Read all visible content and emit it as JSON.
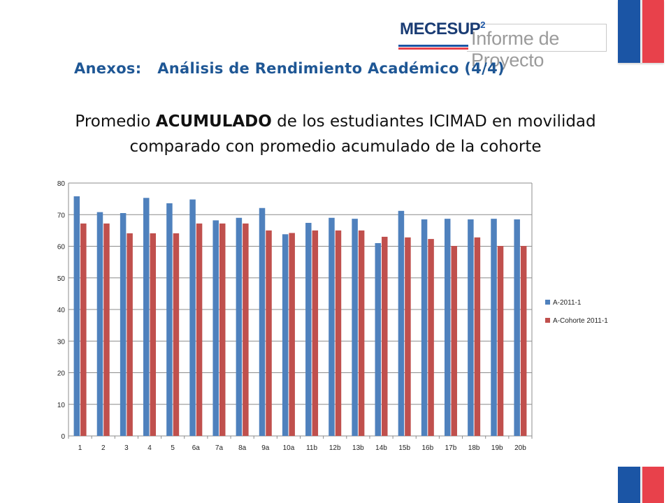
{
  "header": {
    "logo_main": "MECESUP",
    "logo_superscript": "2",
    "logo_sub": "Informe de Proyecto",
    "section_title": "Anexos:   Análisis de Rendimiento Académico (4/4)"
  },
  "subtitle": {
    "line1_prefix": "Promedio ",
    "line1_bold": "ACUMULADO",
    "line1_suffix": " de los estudiantes ICIMAD en movilidad",
    "line2": "comparado con promedio acumulado de la cohorte"
  },
  "colors": {
    "flag_blue": "#1b55a5",
    "flag_red": "#e8414b",
    "series_1": "#4f81bd",
    "series_2": "#c0504d"
  },
  "chart_data": {
    "type": "bar",
    "categories": [
      "1",
      "2",
      "3",
      "4",
      "5",
      "6a",
      "7a",
      "8a",
      "9a",
      "10a",
      "11b",
      "12b",
      "13b",
      "14b",
      "15b",
      "16b",
      "17b",
      "18b",
      "19b",
      "20b"
    ],
    "series": [
      {
        "name": "A-2011-1",
        "values": [
          75.8,
          70.8,
          70.5,
          75.3,
          73.6,
          74.8,
          68.2,
          69.0,
          72.1,
          63.8,
          67.4,
          69.0,
          68.7,
          61.0,
          71.2,
          68.5,
          68.7,
          68.5,
          68.7,
          68.5
        ]
      },
      {
        "name": "A-Cohorte 2011-1",
        "values": [
          67.2,
          67.2,
          64.1,
          64.1,
          64.1,
          67.2,
          67.2,
          67.2,
          65.0,
          64.2,
          65.0,
          65.0,
          65.0,
          63.0,
          62.8,
          62.3,
          60.1,
          62.8,
          60.1,
          60.1
        ]
      }
    ],
    "yticks": [
      "0",
      "10",
      "20",
      "30",
      "40",
      "50",
      "60",
      "70",
      "80"
    ],
    "ylim": [
      0,
      80
    ],
    "grid": true,
    "legend": "right"
  }
}
